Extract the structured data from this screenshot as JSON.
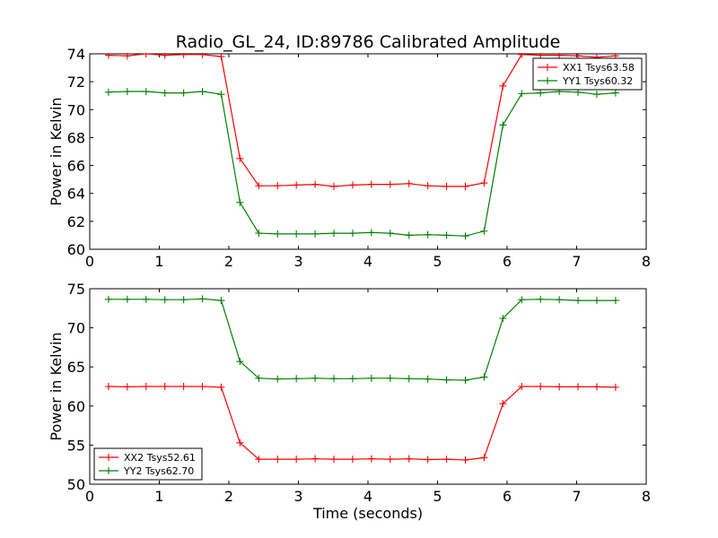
{
  "title": "Radio_GL_24, ID:89786 Calibrated Amplitude",
  "chart_data": [
    {
      "type": "line",
      "title": "Radio_GL_24, ID:89786 Calibrated Amplitude",
      "xlabel": "",
      "ylabel": "Power in Kelvin",
      "xlim": [
        0,
        8
      ],
      "ylim": [
        60,
        74
      ],
      "xticks": [
        0,
        1,
        2,
        3,
        4,
        5,
        6,
        7,
        8
      ],
      "yticks": [
        60,
        62,
        64,
        66,
        68,
        70,
        72,
        74
      ],
      "grid": false,
      "legend_position": "top-right",
      "x": [
        0.27,
        0.54,
        0.81,
        1.08,
        1.35,
        1.62,
        1.89,
        2.16,
        2.43,
        2.7,
        2.97,
        3.24,
        3.51,
        3.78,
        4.05,
        4.32,
        4.59,
        4.86,
        5.13,
        5.4,
        5.67,
        5.94,
        6.21,
        6.48,
        6.75,
        7.02,
        7.29,
        7.56
      ],
      "series": [
        {
          "name": "XX1 Tsys63.58",
          "color": "#ff0000",
          "values": [
            73.9,
            73.85,
            74.0,
            73.9,
            73.95,
            73.95,
            73.8,
            66.5,
            64.55,
            64.55,
            64.6,
            64.65,
            64.5,
            64.6,
            64.65,
            64.65,
            64.7,
            64.55,
            64.5,
            64.5,
            64.75,
            71.7,
            73.95,
            73.9,
            73.9,
            73.85,
            73.75,
            73.85
          ]
        },
        {
          "name": "YY1 Tsys60.32",
          "color": "#008000",
          "values": [
            71.25,
            71.3,
            71.3,
            71.2,
            71.2,
            71.3,
            71.1,
            63.35,
            61.15,
            61.1,
            61.1,
            61.1,
            61.15,
            61.15,
            61.2,
            61.15,
            61.0,
            61.05,
            61.0,
            60.95,
            61.3,
            68.9,
            71.15,
            71.2,
            71.3,
            71.25,
            71.1,
            71.2
          ]
        }
      ]
    },
    {
      "type": "line",
      "title": "",
      "xlabel": "Time (seconds)",
      "ylabel": "Power in Kelvin",
      "xlim": [
        0,
        8
      ],
      "ylim": [
        50,
        75
      ],
      "xticks": [
        0,
        1,
        2,
        3,
        4,
        5,
        6,
        7,
        8
      ],
      "yticks": [
        50,
        55,
        60,
        65,
        70,
        75
      ],
      "grid": false,
      "legend_position": "bottom-left",
      "x": [
        0.27,
        0.54,
        0.81,
        1.08,
        1.35,
        1.62,
        1.89,
        2.16,
        2.43,
        2.7,
        2.97,
        3.24,
        3.51,
        3.78,
        4.05,
        4.32,
        4.59,
        4.86,
        5.13,
        5.4,
        5.67,
        5.94,
        6.21,
        6.48,
        6.75,
        7.02,
        7.29,
        7.56
      ],
      "series": [
        {
          "name": "XX2 Tsys52.61",
          "color": "#ff0000",
          "values": [
            62.5,
            62.45,
            62.5,
            62.5,
            62.5,
            62.5,
            62.4,
            55.3,
            53.2,
            53.2,
            53.2,
            53.25,
            53.2,
            53.2,
            53.25,
            53.2,
            53.25,
            53.15,
            53.2,
            53.1,
            53.4,
            60.3,
            62.5,
            62.5,
            62.45,
            62.45,
            62.45,
            62.4
          ]
        },
        {
          "name": "YY2 Tsys62.70",
          "color": "#008000",
          "values": [
            73.65,
            73.65,
            73.65,
            73.6,
            73.6,
            73.7,
            73.5,
            65.7,
            63.55,
            63.45,
            63.5,
            63.55,
            63.5,
            63.5,
            63.55,
            63.55,
            63.5,
            63.45,
            63.35,
            63.3,
            63.7,
            71.2,
            73.6,
            73.65,
            73.6,
            73.5,
            73.5,
            73.5
          ]
        }
      ]
    }
  ]
}
